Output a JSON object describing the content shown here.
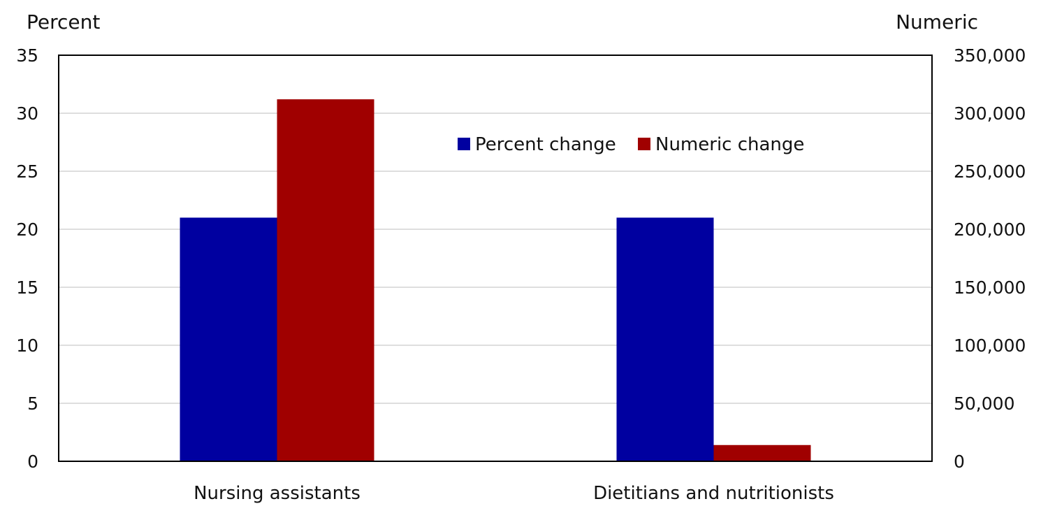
{
  "chart_data": {
    "type": "bar",
    "categories": [
      "Nursing assistants",
      "Dietitians and nutritionists"
    ],
    "series": [
      {
        "name": "Percent change",
        "axis": "left",
        "color": "#0000a0",
        "values": [
          21,
          21
        ]
      },
      {
        "name": "Numeric change",
        "axis": "right",
        "color": "#a00000",
        "values": [
          312000,
          14000
        ]
      }
    ],
    "left_axis": {
      "title": "Percent",
      "ylim": [
        0,
        35
      ],
      "ticks": [
        0,
        5,
        10,
        15,
        20,
        25,
        30,
        35
      ],
      "tick_labels": [
        "0",
        "5",
        "10",
        "15",
        "20",
        "25",
        "30",
        "35"
      ]
    },
    "right_axis": {
      "title": "Numeric",
      "ylim": [
        0,
        350000
      ],
      "ticks": [
        0,
        50000,
        100000,
        150000,
        200000,
        250000,
        300000,
        350000
      ],
      "tick_labels": [
        "0",
        "50,000",
        "100,000",
        "150,000",
        "200,000",
        "250,000",
        "300,000",
        "350,000"
      ]
    },
    "grid": true,
    "legend": {
      "placement": "top-right inside plot"
    }
  }
}
